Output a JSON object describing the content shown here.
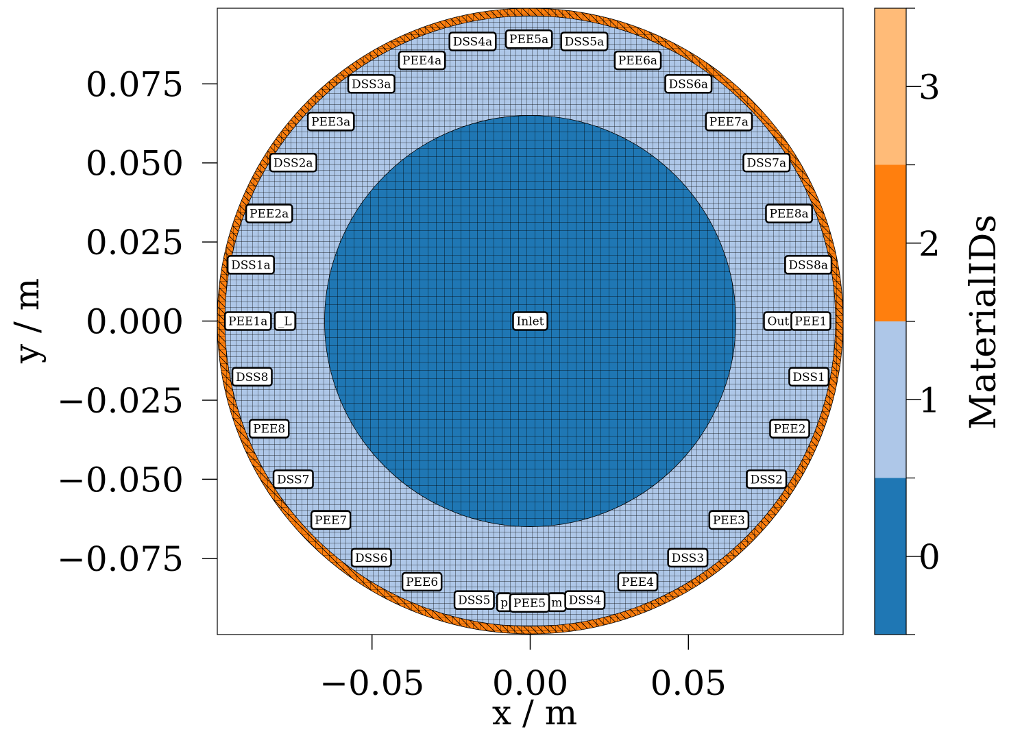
{
  "chart_data": {
    "type": "mesh",
    "x_label": "x / m",
    "y_label": "y / m",
    "xlim": [
      -0.0989,
      0.0989
    ],
    "ylim": [
      -0.0991,
      0.0989
    ],
    "xticks": [
      {
        "value": -0.05,
        "label": "−0.05"
      },
      {
        "value": 0,
        "label": "0.00"
      },
      {
        "value": 0.05,
        "label": "0.05"
      }
    ],
    "yticks": [
      {
        "value": 0.075,
        "label": "0.075"
      },
      {
        "value": 0.05,
        "label": "0.050"
      },
      {
        "value": 0.025,
        "label": "0.025"
      },
      {
        "value": 0,
        "label": "0.000"
      },
      {
        "value": -0.025,
        "label": "−0.025"
      },
      {
        "value": -0.05,
        "label": "−0.050"
      },
      {
        "value": -0.075,
        "label": "−0.075"
      }
    ],
    "regions": [
      {
        "material_id": 2,
        "radius": 0.0989
      },
      {
        "material_id": 1,
        "radius": 0.0965
      },
      {
        "material_id": 0,
        "radius": 0.065
      }
    ],
    "colorbar": {
      "label": "MaterialIDs",
      "lim": [
        -0.5,
        3.5
      ],
      "ticks": [
        0,
        1,
        2,
        3
      ],
      "colors": [
        "#1f77b4",
        "#aec7e8",
        "#ff7f0e",
        "#ffbb78"
      ]
    },
    "annotations": [
      {
        "text": "_L",
        "x": -0.0775,
        "y": 0
      },
      {
        "text": "Out",
        "x": 0.0784,
        "y": 0
      },
      {
        "text": "p",
        "x": -0.0082,
        "y": -0.0889
      },
      {
        "text": "m",
        "x": 0.0084,
        "y": -0.0889
      },
      {
        "text": "DSS4a",
        "x": -0.0182,
        "y": 0.0884
      },
      {
        "text": "PEE5a",
        "x": -0.0004,
        "y": 0.0891
      },
      {
        "text": "DSS5a",
        "x": 0.0171,
        "y": 0.0884
      },
      {
        "text": "PEE4a",
        "x": -0.0342,
        "y": 0.0824
      },
      {
        "text": "PEE6a",
        "x": 0.034,
        "y": 0.0824
      },
      {
        "text": "DSS3a",
        "x": -0.0502,
        "y": 0.075
      },
      {
        "text": "DSS6a",
        "x": 0.05,
        "y": 0.075
      },
      {
        "text": "PEE3a",
        "x": -0.063,
        "y": 0.0631
      },
      {
        "text": "PEE7a",
        "x": 0.0628,
        "y": 0.0631
      },
      {
        "text": "DSS2a",
        "x": -0.0749,
        "y": 0.0501
      },
      {
        "text": "DSS7a",
        "x": 0.0747,
        "y": 0.0501
      },
      {
        "text": "PEE2a",
        "x": -0.0825,
        "y": 0.034
      },
      {
        "text": "PEE8a",
        "x": 0.0818,
        "y": 0.034
      },
      {
        "text": "DSS1a",
        "x": -0.0883,
        "y": 0.0178
      },
      {
        "text": "DSS8a",
        "x": 0.0879,
        "y": 0.0178
      },
      {
        "text": "PEE1a",
        "x": -0.0892,
        "y": 0
      },
      {
        "text": "Inlet",
        "x": 0,
        "y": 0
      },
      {
        "text": "PEE1",
        "x": 0.0887,
        "y": 0
      },
      {
        "text": "DSS8",
        "x": -0.0879,
        "y": -0.0176
      },
      {
        "text": "DSS1",
        "x": 0.0881,
        "y": -0.0176
      },
      {
        "text": "PEE8",
        "x": -0.0825,
        "y": -0.034
      },
      {
        "text": "PEE2",
        "x": 0.082,
        "y": -0.034
      },
      {
        "text": "DSS7",
        "x": -0.0749,
        "y": -0.05
      },
      {
        "text": "DSS2",
        "x": 0.0747,
        "y": -0.05
      },
      {
        "text": "PEE7",
        "x": -0.063,
        "y": -0.0629
      },
      {
        "text": "PEE3",
        "x": 0.0628,
        "y": -0.0629
      },
      {
        "text": "DSS6",
        "x": -0.0502,
        "y": -0.0748
      },
      {
        "text": "DSS3",
        "x": 0.0498,
        "y": -0.0748
      },
      {
        "text": "PEE6",
        "x": -0.0342,
        "y": -0.0824
      },
      {
        "text": "PEE4",
        "x": 0.034,
        "y": -0.0824
      },
      {
        "text": "DSS5",
        "x": -0.0177,
        "y": -0.0882
      },
      {
        "text": "PEE5",
        "x": -0.0002,
        "y": -0.0891
      },
      {
        "text": "DSS4",
        "x": 0.0173,
        "y": -0.0882
      }
    ]
  }
}
